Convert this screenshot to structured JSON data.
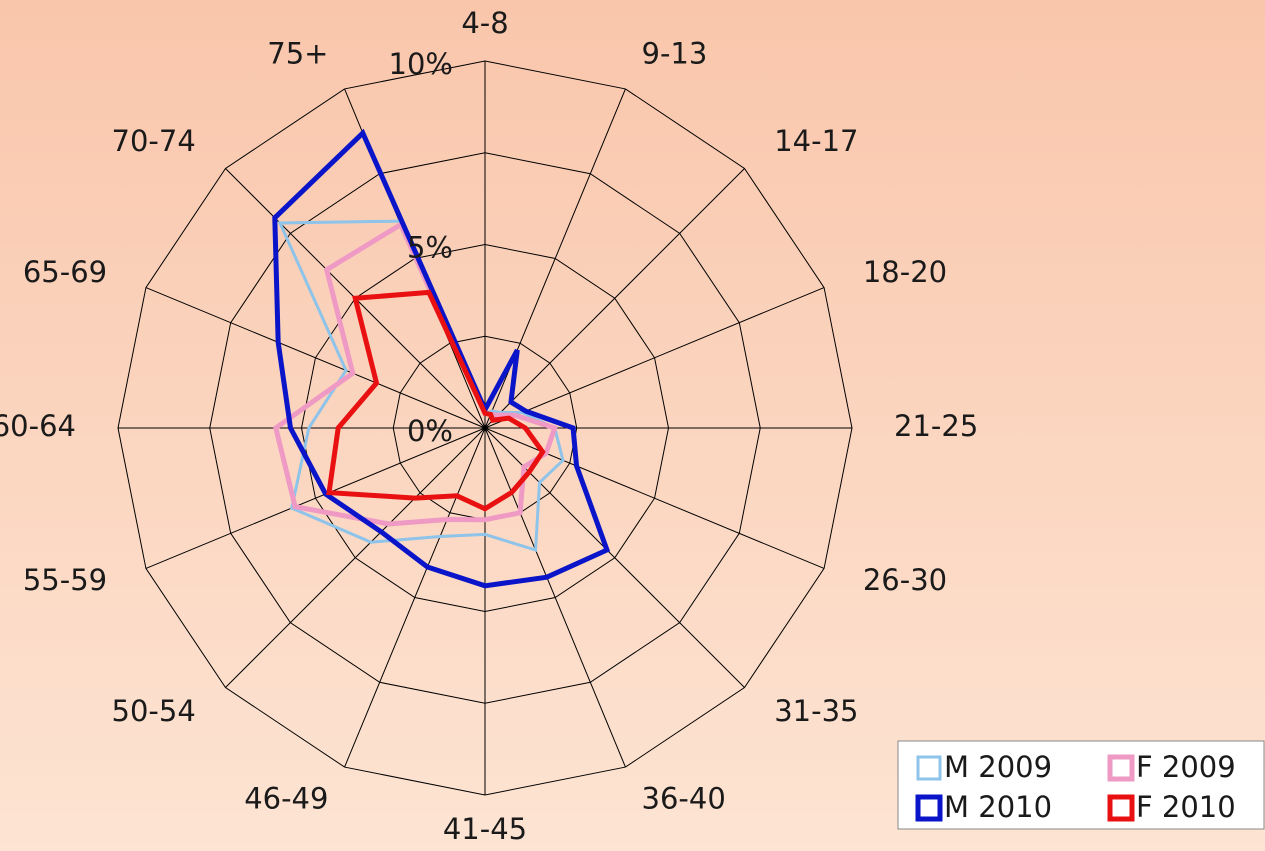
{
  "chart_data": {
    "type": "radar",
    "categories": [
      "4-8",
      "9-13",
      "14-17",
      "18-20",
      "21-25",
      "26-30",
      "31-35",
      "36-40",
      "41-45",
      "46-49",
      "50-54",
      "55-59",
      "60-64",
      "65-69",
      "70-74",
      "75+"
    ],
    "series": [
      {
        "name": "M 2009",
        "color": "#8ec3ea",
        "width": 3,
        "values": [
          0.4,
          0.5,
          0.6,
          1.1,
          1.9,
          2.3,
          2.1,
          3.6,
          2.9,
          3.2,
          4.4,
          5.7,
          4.8,
          4.1,
          7.9,
          6.1
        ]
      },
      {
        "name": "F 2009",
        "color": "#ef9ac4",
        "width": 5,
        "values": [
          0.4,
          0.4,
          0.5,
          0.9,
          1.9,
          1.8,
          1.5,
          2.5,
          2.5,
          2.7,
          3.7,
          5.6,
          5.7,
          3.9,
          6.1,
          6.0
        ]
      },
      {
        "name": "M 2010",
        "color": "#0a14c8",
        "width": 5,
        "values": [
          0.5,
          2.3,
          1.0,
          1.2,
          2.4,
          2.7,
          4.7,
          4.4,
          4.3,
          4.1,
          4.0,
          4.7,
          5.3,
          6.1,
          8.1,
          8.7
        ]
      },
      {
        "name": "F 2010",
        "color": "#e81010",
        "width": 5,
        "values": [
          0.4,
          0.4,
          0.3,
          0.7,
          1.1,
          1.7,
          1.7,
          1.9,
          2.2,
          2.0,
          2.7,
          4.6,
          4.0,
          3.2,
          5.0,
          4.0
        ]
      }
    ],
    "ylim": [
      0,
      10
    ],
    "yticks": [
      {
        "value": 0,
        "label": "0%"
      },
      {
        "value": 5,
        "label": "5%"
      },
      {
        "value": 10,
        "label": "10%"
      }
    ],
    "grid_rings": [
      2.5,
      7.5
    ],
    "legend": "bottom-right"
  }
}
